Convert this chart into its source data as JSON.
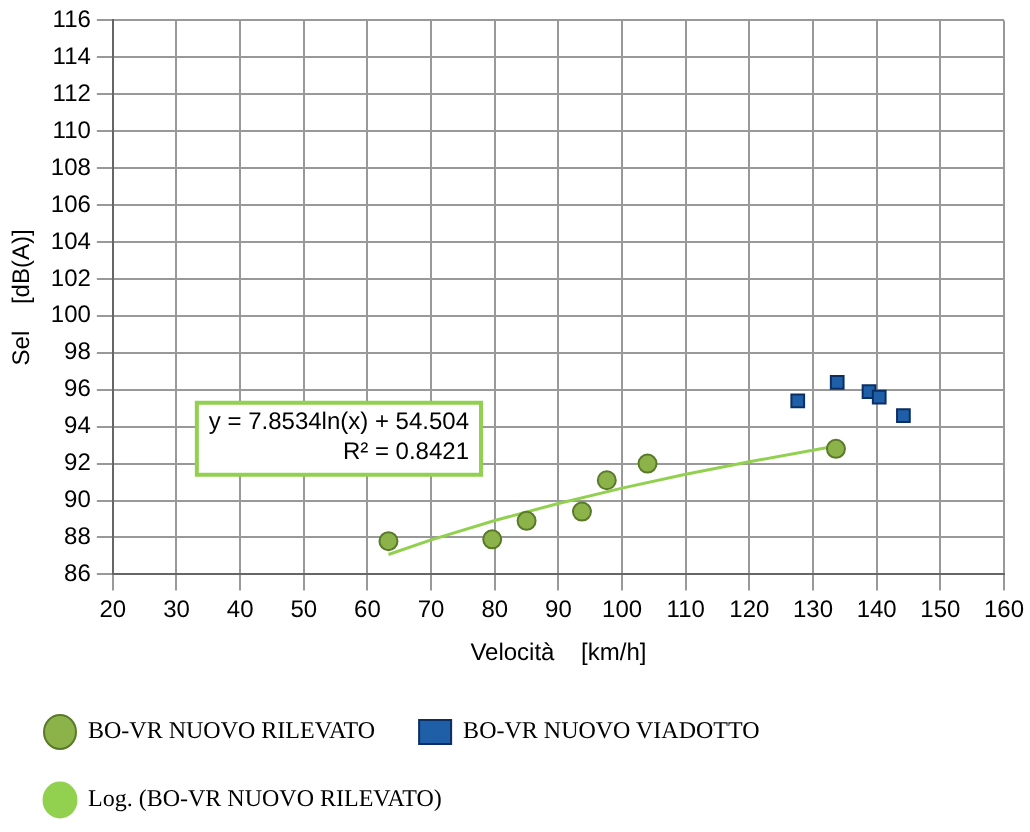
{
  "chart_data": {
    "type": "scatter",
    "xlabel": "Velocità    [km/h]",
    "ylabel": "Sel    [dB(A)]",
    "xlim": [
      20,
      160
    ],
    "xticks": [
      20,
      30,
      40,
      50,
      60,
      70,
      80,
      90,
      100,
      110,
      120,
      130,
      140,
      150,
      160
    ],
    "ylim": [
      86,
      116
    ],
    "yticks": [
      86,
      88,
      90,
      92,
      94,
      96,
      98,
      100,
      102,
      104,
      106,
      108,
      110,
      112,
      114,
      116
    ],
    "grid": true,
    "legend": "bottom",
    "annotations": [
      "y = 7.8534ln(x) + 54.504",
      "R² = 0.8421"
    ],
    "series": [
      {
        "name": "BO-VR NUOVO RILEVATO",
        "color": "#8cb34a",
        "marker": "circle",
        "x": [
          63.3,
          79.6,
          85,
          93.7,
          97.6,
          104,
          133.6
        ],
        "values": [
          87.8,
          87.9,
          88.9,
          89.4,
          91.1,
          92,
          92.8
        ]
      },
      {
        "name": "BO-VR NUOVO VIADOTTO",
        "color": "#1f5fa8",
        "marker": "square",
        "x": [
          127.6,
          133.8,
          138.8,
          140.4,
          144.2
        ],
        "values": [
          95.4,
          96.4,
          95.9,
          95.6,
          94.6
        ]
      },
      {
        "name": "Log. (BO-VR NUOVO RILEVATO)",
        "type": "line",
        "color": "#92d050",
        "marker": "none",
        "x": [
          63.3,
          70,
          80,
          90,
          100,
          110,
          120,
          133.6
        ],
        "values": [
          87.08,
          87.87,
          88.92,
          89.84,
          90.67,
          91.42,
          92.1,
          92.95
        ]
      }
    ]
  }
}
